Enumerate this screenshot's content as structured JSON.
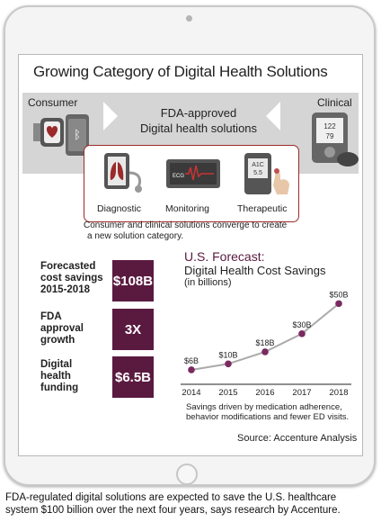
{
  "title": "Growing Category of Digital Health Solutions",
  "band": {
    "left_label": "Consumer",
    "center_line1": "FDA-approved",
    "center_line2": "Digital health solutions",
    "right_label": "Clinical"
  },
  "solutions": [
    {
      "label": "Diagnostic",
      "icon": "lungs-scan-icon"
    },
    {
      "label": "Monitoring",
      "icon": "ecg-monitor-icon"
    },
    {
      "label": "Therapeutic",
      "icon": "a1c-meter-icon"
    }
  ],
  "illustrations": {
    "ecg_screen_text": "ECG",
    "a1c_text_1": "A1C",
    "a1c_text_2": "5.5",
    "bp_text_1": "122",
    "bp_text_2": "79"
  },
  "caption_line1": "Consumer and clinical solutions converge to create",
  "caption_line2": "a new solution category.",
  "stats": [
    {
      "label_lines": [
        "Forecasted",
        "cost savings",
        "2015-2018"
      ],
      "value": "$108B"
    },
    {
      "label_lines": [
        "FDA",
        "approval",
        "growth"
      ],
      "value": "3X"
    },
    {
      "label_lines": [
        "Digital",
        "health",
        "funding"
      ],
      "value": "$6.5B"
    }
  ],
  "forecast": {
    "title": "U.S. Forecast:",
    "subtitle": "Digital Health Cost Savings",
    "unit": "(in billions)"
  },
  "chart_data": {
    "type": "line",
    "title": "Digital Health Cost Savings",
    "x": [
      "2014",
      "2015",
      "2016",
      "2017",
      "2018"
    ],
    "series": [
      {
        "values": [
          6,
          10,
          18,
          30,
          50
        ]
      }
    ],
    "point_labels": [
      "$6B",
      "$10B",
      "$18B",
      "$30B",
      "$50B"
    ],
    "ylim": [
      0,
      55
    ],
    "grid": false,
    "colors": {
      "line": "#aaaaaa",
      "point": "#7b2a60"
    }
  },
  "chart_note_line1": "Savings driven by medication adherence,",
  "chart_note_line2": "behavior modifications and fewer ED visits.",
  "source": "Source: Accenture Analysis",
  "bottom_caption_line1": "FDA-regulated digital solutions are expected to save the U.S. healthcare",
  "bottom_caption_line2": "system $100 billion over the next four years, says research by Accenture.",
  "colors": {
    "accent": "#5a1a40",
    "border_red": "#9b2a2a",
    "band_grey": "#d5d5d5"
  }
}
